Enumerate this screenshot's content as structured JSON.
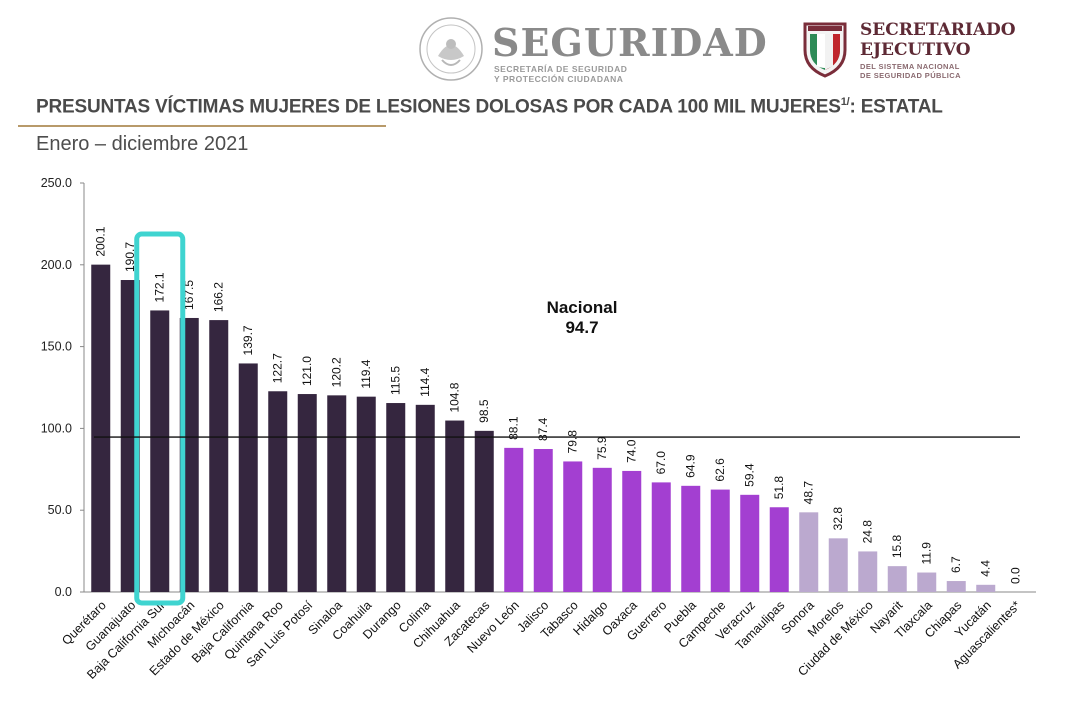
{
  "header": {
    "logo_text": "ESTADOS UNIDOS MEXICANOS",
    "brand_title": "SEGURIDAD",
    "brand_sub_1": "SECRETARÍA DE SEGURIDAD",
    "brand_sub_2": "Y PROTECCIÓN CIUDADANA",
    "se_title_1": "SECRETARIADO",
    "se_title_2": "EJECUTIVO",
    "se_sub_1": "DEL SISTEMA NACIONAL",
    "se_sub_2": "DE SEGURIDAD PÚBLICA"
  },
  "page": {
    "title": "PRESUNTAS VÍCTIMAS MUJERES DE LESIONES DOLOSAS POR CADA 100 MIL MUJERES",
    "title_note": "1/",
    "title_suffix": ": ESTATAL",
    "subtitle": "Enero – diciembre 2021"
  },
  "colors": {
    "dark": "#35263f",
    "purple": "#a33fd1",
    "light": "#bba9cf",
    "highlight": "#3fd4d0",
    "reference_line": "#111111"
  },
  "chart_data": {
    "type": "bar",
    "ylim": [
      0,
      250
    ],
    "yticks": [
      "0.0",
      "50.0",
      "100.0",
      "150.0",
      "200.0",
      "250.0"
    ],
    "ytick_values": [
      0,
      50,
      100,
      150,
      200,
      250
    ],
    "grid": false,
    "reference": {
      "label": "Nacional",
      "value": 94.7,
      "value_label": "94.7"
    },
    "highlighted_category": "Baja California Sur",
    "categories": [
      "Querétaro",
      "Guanajuato",
      "Baja California Sur",
      "Michoacán",
      "Estado de México",
      "Baja California",
      "Quintana Roo",
      "San Luis Potosí",
      "Sinaloa",
      "Coahuila",
      "Durango",
      "Colima",
      "Chihuahua",
      "Zacatecas",
      "Nuevo León",
      "Jalisco",
      "Tabasco",
      "Hidalgo",
      "Oaxaca",
      "Guerrero",
      "Puebla",
      "Campeche",
      "Veracruz",
      "Tamaulipas",
      "Sonora",
      "Morelos",
      "Ciudad de México",
      "Nayarit",
      "Tlaxcala",
      "Chiapas",
      "Yucatán",
      "Aguascalientes*"
    ],
    "values": [
      200.1,
      190.7,
      172.1,
      167.5,
      166.2,
      139.7,
      122.7,
      121.0,
      120.2,
      119.4,
      115.5,
      114.4,
      104.8,
      98.5,
      88.1,
      87.4,
      79.8,
      75.9,
      74.0,
      67.0,
      64.9,
      62.6,
      59.4,
      51.8,
      48.7,
      32.8,
      24.8,
      15.8,
      11.9,
      6.7,
      4.4,
      0.0
    ],
    "value_labels": [
      "200.1",
      "190.7",
      "172.1",
      "167.5",
      "166.2",
      "139.7",
      "122.7",
      "121.0",
      "120.2",
      "119.4",
      "115.5",
      "114.4",
      "104.8",
      "98.5",
      "88.1",
      "87.4",
      "79.8",
      "75.9",
      "74.0",
      "67.0",
      "64.9",
      "62.6",
      "59.4",
      "51.8",
      "48.7",
      "32.8",
      "24.8",
      "15.8",
      "11.9",
      "6.7",
      "4.4",
      "0.0"
    ],
    "groups": [
      "dark",
      "dark",
      "dark",
      "dark",
      "dark",
      "dark",
      "dark",
      "dark",
      "dark",
      "dark",
      "dark",
      "dark",
      "dark",
      "dark",
      "purple",
      "purple",
      "purple",
      "purple",
      "purple",
      "purple",
      "purple",
      "purple",
      "purple",
      "purple",
      "light",
      "light",
      "light",
      "light",
      "light",
      "light",
      "light",
      "light"
    ]
  }
}
